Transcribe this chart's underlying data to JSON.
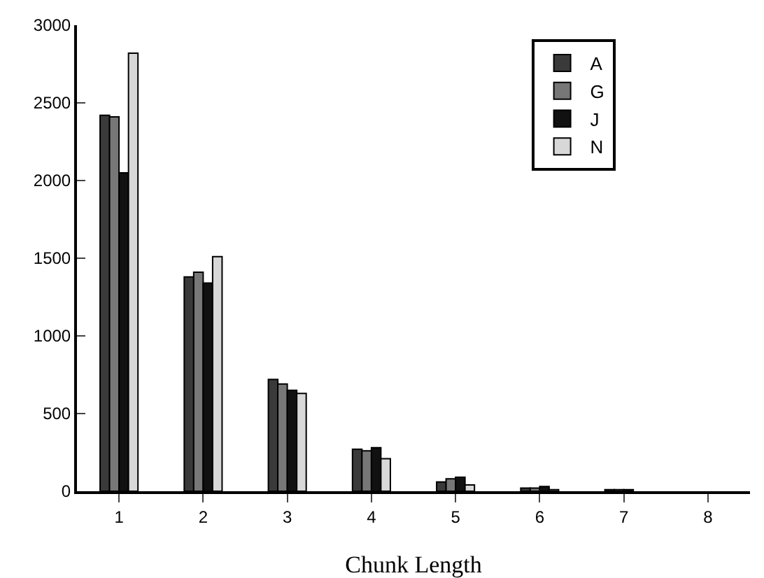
{
  "chart_data": {
    "type": "bar",
    "xlabel": "Chunk Length",
    "categories": [
      "1",
      "2",
      "3",
      "4",
      "5",
      "6",
      "7",
      "8"
    ],
    "series": [
      {
        "name": "A",
        "color": "#3a3a3a",
        "values": [
          2420,
          1380,
          720,
          270,
          60,
          20,
          10,
          0
        ]
      },
      {
        "name": "G",
        "color": "#777777",
        "values": [
          2410,
          1410,
          690,
          260,
          80,
          20,
          10,
          0
        ]
      },
      {
        "name": "J",
        "color": "#111111",
        "values": [
          2050,
          1340,
          650,
          280,
          90,
          30,
          10,
          0
        ]
      },
      {
        "name": "N",
        "color": "#d8d8d8",
        "values": [
          2820,
          1510,
          630,
          210,
          40,
          10,
          0,
          0
        ]
      }
    ],
    "ylim": [
      0,
      3000
    ],
    "yticks": [
      0,
      500,
      1000,
      1500,
      2000,
      2500,
      3000
    ],
    "grid": false,
    "legend": "top right"
  }
}
